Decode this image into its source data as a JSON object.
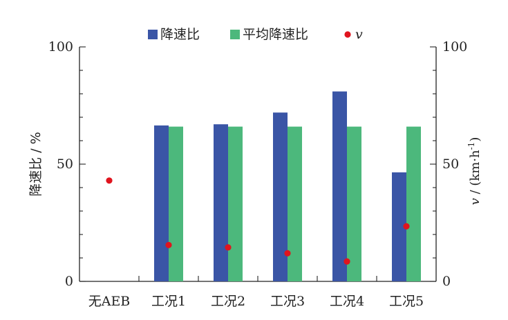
{
  "chart_data": {
    "type": "bar",
    "categories": [
      "无AEB",
      "工况1",
      "工况2",
      "工况3",
      "工况4",
      "工况5"
    ],
    "series": [
      {
        "name": "降速比",
        "kind": "bar",
        "axis": "left",
        "color": "#3a55a6",
        "values": [
          null,
          66.5,
          67,
          72,
          81,
          46.5
        ]
      },
      {
        "name": "平均降速比",
        "kind": "bar",
        "axis": "left",
        "color": "#4cb87c",
        "values": [
          null,
          66,
          66,
          66,
          66,
          66
        ]
      },
      {
        "name": "v",
        "kind": "scatter",
        "axis": "right",
        "color": "#e0141e",
        "values": [
          43,
          15.5,
          14.5,
          12,
          8.5,
          23.5
        ]
      }
    ],
    "ylabel_left": "降速比 / %",
    "ylabel_right_prefix": "v",
    "ylabel_right_rest": " / (km·h",
    "ylabel_right_sup": "-1",
    "ylabel_right_close": ")",
    "ylim_left": [
      0,
      100
    ],
    "ylim_right": [
      0,
      100
    ],
    "yticks_left": [
      "0",
      "50",
      "100"
    ],
    "yticks_right": [
      "0",
      "50",
      "100"
    ],
    "legend_position": "top-center",
    "grid": false
  }
}
